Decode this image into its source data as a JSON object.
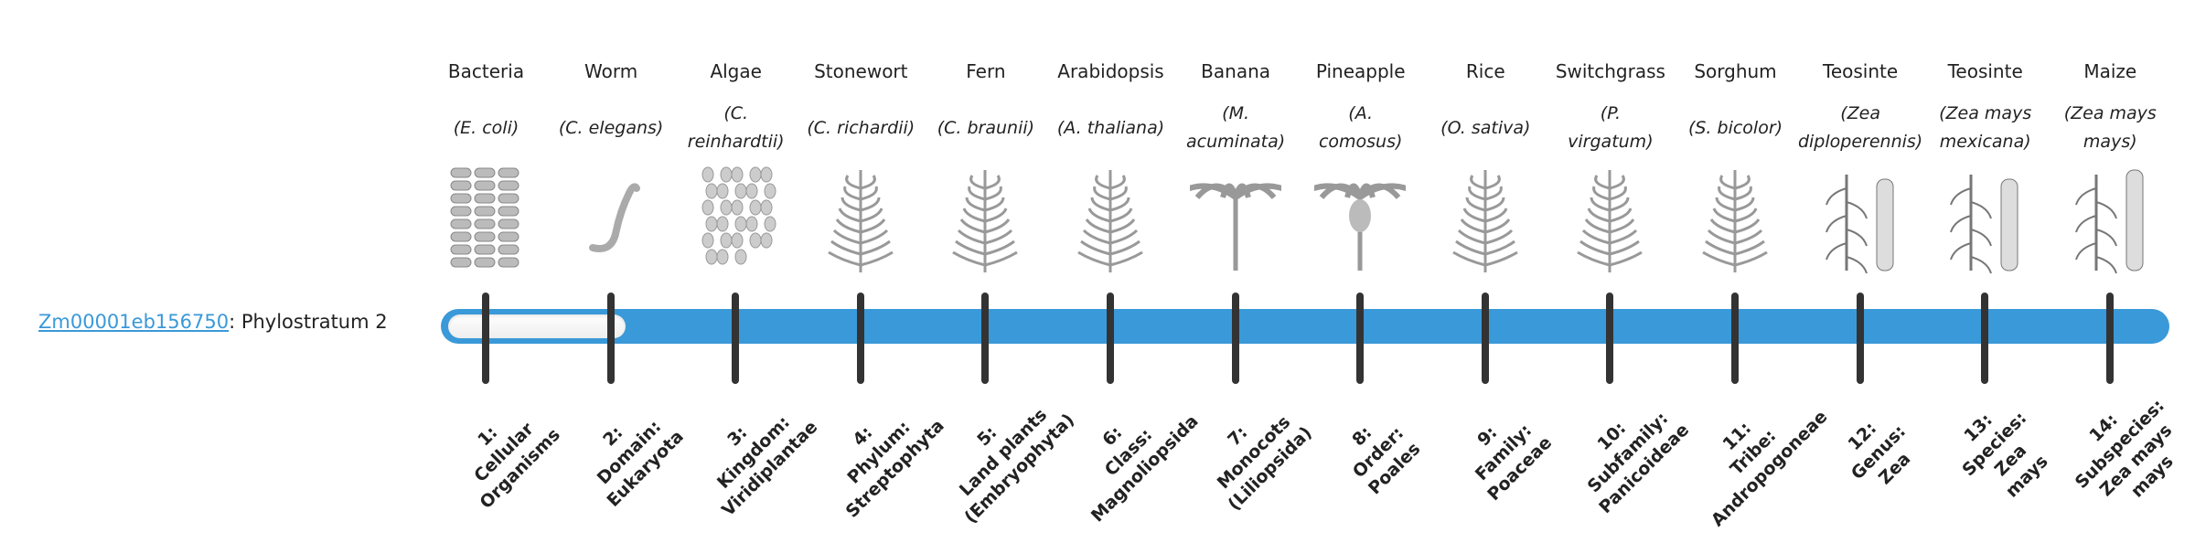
{
  "gene": {
    "id": "Zm00001eb156750",
    "suffix": ": Phylostratum 2",
    "phylostratum": 2
  },
  "colors": {
    "accent": "#3a99d8",
    "tick": "#333333"
  },
  "organisms": [
    {
      "common": "Bacteria",
      "species": "(E. coli)",
      "icon": "bacteria-icon"
    },
    {
      "common": "Worm",
      "species": "(C. elegans)",
      "icon": "worm-icon"
    },
    {
      "common": "Algae",
      "species": "(C.\nreinhardtii)",
      "icon": "algae-icon"
    },
    {
      "common": "Stonewort",
      "species": "(C. richardii)",
      "icon": "stonewort-icon"
    },
    {
      "common": "Fern",
      "species": "(C. braunii)",
      "icon": "fern-icon"
    },
    {
      "common": "Arabidopsis",
      "species": "(A. thaliana)",
      "icon": "arabidopsis-icon"
    },
    {
      "common": "Banana",
      "species": "(M.\nacuminata)",
      "icon": "banana-icon"
    },
    {
      "common": "Pineapple",
      "species": "(A.\ncomosus)",
      "icon": "pineapple-icon"
    },
    {
      "common": "Rice",
      "species": "(O. sativa)",
      "icon": "rice-icon"
    },
    {
      "common": "Switchgrass",
      "species": "(P.\nvirgatum)",
      "icon": "switchgrass-icon"
    },
    {
      "common": "Sorghum",
      "species": "(S. bicolor)",
      "icon": "sorghum-icon"
    },
    {
      "common": "Teosinte",
      "species": "(Zea\ndiploperennis)",
      "icon": "teosinte-icon"
    },
    {
      "common": "Teosinte",
      "species": "(Zea mays\nmexicana)",
      "icon": "teosinte-icon"
    },
    {
      "common": "Maize",
      "species": "(Zea mays\nmays)",
      "icon": "maize-icon"
    }
  ],
  "strata": [
    "1:\nCellular\nOrganisms",
    "2:\nDomain:\nEukaryota",
    "3:\nKingdom:\nViridiplantae",
    "4:\nPhylum:\nStreptophyta",
    "5:\nLand plants\n(Embryophyta)",
    "6:\nClass:\nMagnoliopsida",
    "7:\nMonocots\n(Liliopsida)",
    "8:\nOrder:\nPoales",
    "9:\nFamily:\nPoaceae",
    "10:\nSubfamily:\nPanicoideae",
    "11:\nTribe:\nAndropogoneae",
    "12:\nGenus:\nZea",
    "13:\nSpecies:\nZea\nmays",
    "14:\nSubspecies:\nZea mays\nmays"
  ]
}
